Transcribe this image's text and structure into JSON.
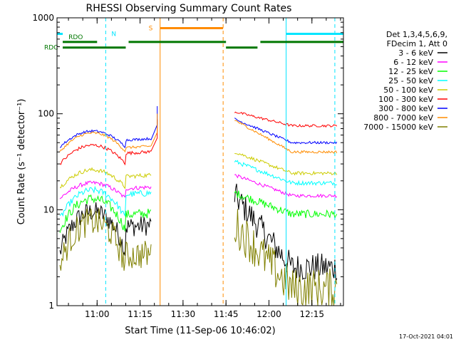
{
  "chart_data": {
    "type": "line",
    "title": "RHESSI Observing Summary Count Rates",
    "xlabel": "Start Time (11-Sep-06 10:46:02)",
    "ylabel": "Count Rate (s⁻¹ detector⁻¹)",
    "y_scale": "log",
    "ylim": [
      1,
      1000
    ],
    "xlim_minutes": [
      "10:46",
      "12:26"
    ],
    "x_ticks": [
      "11:00",
      "11:15",
      "11:30",
      "11:45",
      "12:00",
      "12:15"
    ],
    "y_ticks": [
      "1",
      "10",
      "100",
      "1000"
    ],
    "legend_header": [
      "Det 1,3,4,5,6,9,",
      "FDecim 1, Att 0"
    ],
    "legend_position": "right",
    "timestamp": "17-Oct-2021 04:01",
    "flag_labels": {
      "n": "N",
      "s": "S",
      "rdo": "RDO",
      "rdc": "RDC"
    },
    "flags": {
      "n": {
        "color": "#00e5ff",
        "intervals": [
          [
            "10:46",
            "10:48"
          ],
          [
            "12:06",
            "12:26"
          ]
        ],
        "level": 680
      },
      "s": {
        "color": "#ff8c00",
        "intervals": [
          [
            "11:22",
            "11:44"
          ]
        ],
        "level": 780
      },
      "rdo": {
        "color": "#007700",
        "intervals": [
          [
            "10:48",
            "11:00"
          ],
          [
            "11:11",
            "11:45"
          ],
          [
            "11:57",
            "12:26"
          ]
        ],
        "level": 560
      },
      "rdc": {
        "color": "#007700",
        "intervals": [
          [
            "10:48",
            "11:10"
          ],
          [
            "11:45",
            "11:56"
          ]
        ],
        "level": 490
      }
    },
    "vlines": [
      {
        "t": "10:46",
        "color": "#00e5ff",
        "dash": false
      },
      {
        "t": "11:03",
        "color": "#00e5ff",
        "dash": true
      },
      {
        "t": "11:22",
        "color": "#ff8c00",
        "dash": false
      },
      {
        "t": "11:44",
        "color": "#ff8c00",
        "dash": true
      },
      {
        "t": "12:06",
        "color": "#00e5ff",
        "dash": false
      },
      {
        "t": "12:23",
        "color": "#00e5ff",
        "dash": true
      }
    ],
    "series": [
      {
        "name": "3 - 6 keV",
        "color": "#000000",
        "seg1": {
          "base": 3.5,
          "peak": 9.5,
          "end": 6,
          "noise": 0.25
        },
        "seg2": {
          "start": 14,
          "end": 2.5,
          "noise": 0.35
        }
      },
      {
        "name": "6 - 12 keV",
        "color": "#ff00ff",
        "seg1": {
          "base": 13,
          "peak": 19,
          "end": 15,
          "noise": 0.05
        },
        "seg2": {
          "start": 23,
          "end": 14,
          "noise": 0.04
        }
      },
      {
        "name": "12 - 25 keV",
        "color": "#00ff00",
        "seg1": {
          "base": 6,
          "peak": 13,
          "end": 8,
          "noise": 0.12
        },
        "seg2": {
          "start": 15,
          "end": 9,
          "noise": 0.1
        }
      },
      {
        "name": "25 - 50 keV",
        "color": "#00ffff",
        "seg1": {
          "base": 8,
          "peak": 16,
          "end": 13,
          "noise": 0.08
        },
        "seg2": {
          "start": 32,
          "end": 19,
          "noise": 0.05
        }
      },
      {
        "name": "50 - 100 keV",
        "color": "#cccc00",
        "seg1": {
          "base": 17,
          "peak": 26,
          "end": 20,
          "noise": 0.05
        },
        "seg2": {
          "start": 40,
          "end": 24,
          "noise": 0.04
        }
      },
      {
        "name": "100 - 300 keV",
        "color": "#ff0000",
        "seg1": {
          "base": 30,
          "peak": 47,
          "end": 35,
          "noise": 0.04
        },
        "seg2": {
          "start": 105,
          "end": 75,
          "noise": 0.03
        }
      },
      {
        "name": "300 - 800 keV",
        "color": "#0000ff",
        "seg1": {
          "base": 45,
          "peak": 66,
          "end": 48,
          "noise": 0.03
        },
        "seg2": {
          "start": 88,
          "end": 50,
          "noise": 0.03
        }
      },
      {
        "name": "800 - 7000 keV",
        "color": "#ff8c00",
        "seg1": {
          "base": 40,
          "peak": 63,
          "end": 40,
          "noise": 0.03
        },
        "seg2": {
          "start": 86,
          "end": 40,
          "noise": 0.03
        }
      },
      {
        "name": "7000 - 15000 keV",
        "color": "#808000",
        "seg1": {
          "base": 2.5,
          "peak": 7.5,
          "end": 3,
          "noise": 0.35
        },
        "seg2": {
          "start": 7,
          "end": 1.5,
          "noise": 0.5
        }
      }
    ]
  }
}
